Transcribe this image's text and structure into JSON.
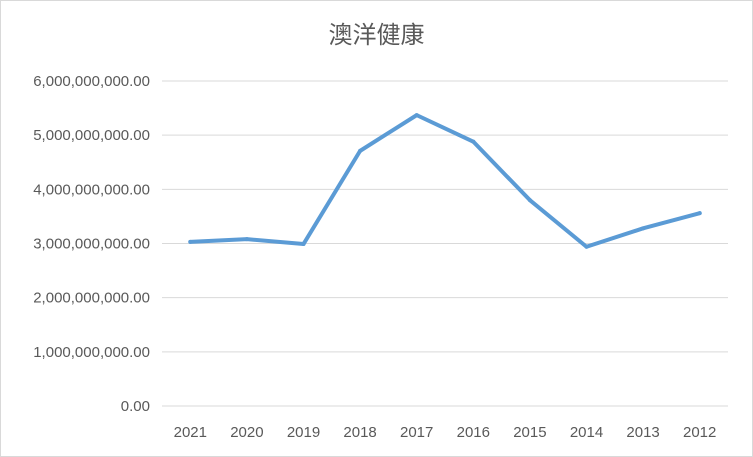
{
  "chart_data": {
    "type": "line",
    "title": "澳洋健康",
    "xlabel": "",
    "ylabel": "",
    "categories": [
      "2021",
      "2020",
      "2019",
      "2018",
      "2017",
      "2016",
      "2015",
      "2014",
      "2013",
      "2012"
    ],
    "series": [
      {
        "values": [
          3030000000,
          3080000000,
          2990000000,
          4710000000,
          5370000000,
          4880000000,
          3800000000,
          2940000000,
          3280000000,
          3560000000
        ]
      }
    ],
    "ylim": [
      0,
      6000000000
    ],
    "yticks": [
      0,
      1000000000,
      2000000000,
      3000000000,
      4000000000,
      5000000000,
      6000000000
    ],
    "ytick_labels": [
      "0.00",
      "1,000,000,000.00",
      "2,000,000,000.00",
      "3,000,000,000.00",
      "4,000,000,000.00",
      "5,000,000,000.00",
      "6,000,000,000.00"
    ],
    "grid": true,
    "legend": "none",
    "colors": {
      "line": "#5b9bd5",
      "grid": "#d9d9d9",
      "text": "#595959"
    }
  }
}
